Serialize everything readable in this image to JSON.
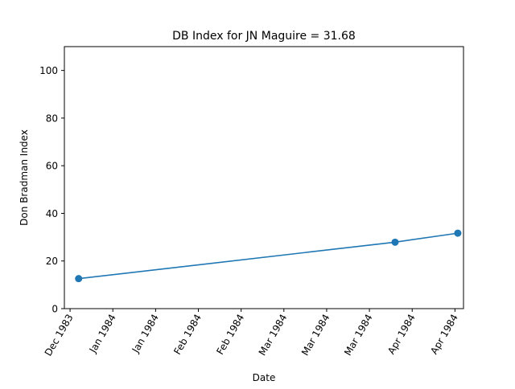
{
  "chart_data": {
    "type": "line",
    "title": "DB Index for JN Maguire = 31.68",
    "xlabel": "Date",
    "ylabel": "Don Bradman Index",
    "ylim": [
      0,
      110
    ],
    "yticks": [
      0,
      20,
      40,
      60,
      80,
      100
    ],
    "xlim": [
      "1983-11-29",
      "1984-04-17"
    ],
    "xticks": [
      {
        "date": "1983-12-01",
        "label": "Dec 1983"
      },
      {
        "date": "1983-12-16",
        "label": "Jan 1984"
      },
      {
        "date": "1983-12-31",
        "label": "Jan 1984"
      },
      {
        "date": "1984-01-15",
        "label": "Feb 1984"
      },
      {
        "date": "1984-01-30",
        "label": "Feb 1984"
      },
      {
        "date": "1984-02-14",
        "label": "Mar 1984"
      },
      {
        "date": "1984-02-29",
        "label": "Mar 1984"
      },
      {
        "date": "1984-03-15",
        "label": "Mar 1984"
      },
      {
        "date": "1984-03-30",
        "label": "Apr 1984"
      },
      {
        "date": "1984-04-14",
        "label": "Apr 1984"
      }
    ],
    "grid": false,
    "series": [
      {
        "color": "#1f77b4",
        "marker": "circle",
        "x": [
          "1983-12-04",
          "1984-03-24",
          "1984-04-15"
        ],
        "y": [
          12.6,
          27.9,
          31.68
        ]
      }
    ]
  }
}
